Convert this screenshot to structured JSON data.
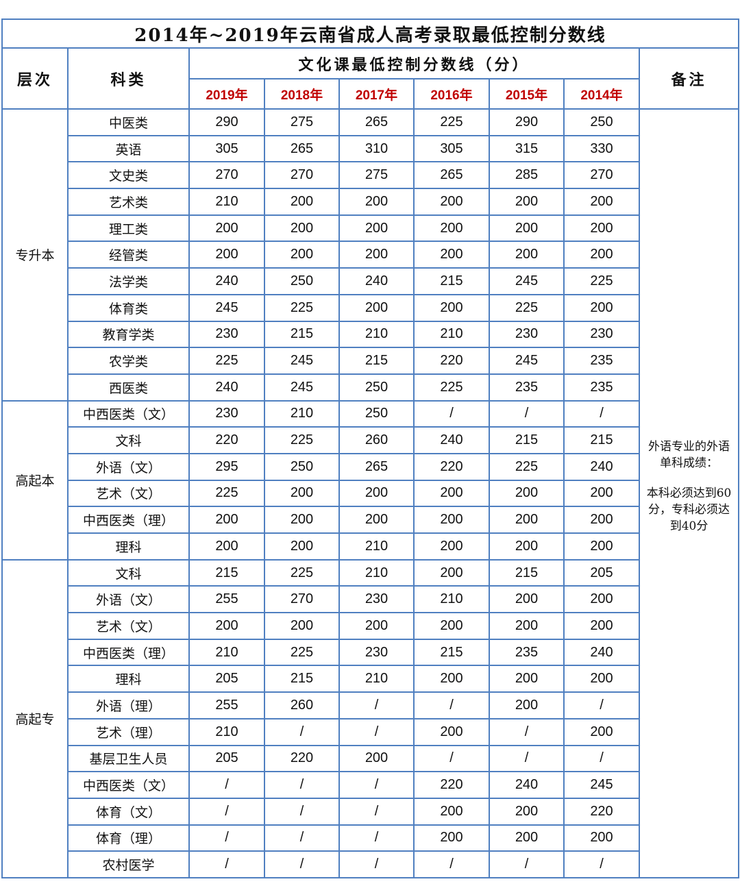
{
  "title": "2014年~2019年云南省成人高考录取最低控制分数线",
  "header": {
    "level": "层次",
    "category": "科类",
    "scores": "文化课最低控制分数线（分）",
    "years": [
      "2019年",
      "2018年",
      "2017年",
      "2016年",
      "2015年",
      "2014年"
    ],
    "note": "备注"
  },
  "groups": [
    {
      "level": "专升本",
      "rows": [
        {
          "category": "中医类",
          "scores": [
            290,
            275,
            265,
            225,
            290,
            250
          ]
        },
        {
          "category": "英语",
          "scores": [
            305,
            265,
            310,
            305,
            315,
            330
          ]
        },
        {
          "category": "文史类",
          "scores": [
            270,
            270,
            275,
            265,
            285,
            270
          ]
        },
        {
          "category": "艺术类",
          "scores": [
            210,
            200,
            200,
            200,
            200,
            200
          ]
        },
        {
          "category": "理工类",
          "scores": [
            200,
            200,
            200,
            200,
            200,
            200
          ]
        },
        {
          "category": "经管类",
          "scores": [
            200,
            200,
            200,
            200,
            200,
            200
          ]
        },
        {
          "category": "法学类",
          "scores": [
            240,
            250,
            240,
            215,
            245,
            225
          ]
        },
        {
          "category": "体育类",
          "scores": [
            245,
            225,
            200,
            200,
            225,
            200
          ]
        },
        {
          "category": "教育学类",
          "scores": [
            230,
            215,
            210,
            210,
            230,
            230
          ]
        },
        {
          "category": "农学类",
          "scores": [
            225,
            245,
            215,
            220,
            245,
            235
          ]
        },
        {
          "category": "西医类",
          "scores": [
            240,
            245,
            250,
            225,
            235,
            235
          ]
        }
      ]
    },
    {
      "level": "高起本",
      "rows": [
        {
          "category": "中西医类（文）",
          "scores": [
            230,
            210,
            250,
            "/",
            "/",
            "/"
          ]
        },
        {
          "category": "文科",
          "scores": [
            220,
            225,
            260,
            240,
            215,
            215
          ]
        },
        {
          "category": "外语（文）",
          "scores": [
            295,
            250,
            265,
            220,
            225,
            240
          ]
        },
        {
          "category": "艺术（文）",
          "scores": [
            225,
            200,
            200,
            200,
            200,
            200
          ]
        },
        {
          "category": "中西医类（理）",
          "scores": [
            200,
            200,
            200,
            200,
            200,
            200
          ]
        },
        {
          "category": "理科",
          "scores": [
            200,
            200,
            210,
            200,
            200,
            200
          ]
        }
      ]
    },
    {
      "level": "高起专",
      "rows": [
        {
          "category": "文科",
          "scores": [
            215,
            225,
            210,
            200,
            215,
            205
          ]
        },
        {
          "category": "外语（文）",
          "scores": [
            255,
            270,
            230,
            210,
            200,
            200
          ]
        },
        {
          "category": "艺术（文）",
          "scores": [
            200,
            200,
            200,
            200,
            200,
            200
          ]
        },
        {
          "category": "中西医类（理）",
          "scores": [
            210,
            225,
            230,
            215,
            235,
            240
          ]
        },
        {
          "category": "理科",
          "scores": [
            205,
            215,
            210,
            200,
            200,
            200
          ]
        },
        {
          "category": "外语（理）",
          "scores": [
            255,
            260,
            "/",
            "/",
            200,
            "/"
          ]
        },
        {
          "category": "艺术（理）",
          "scores": [
            210,
            "/",
            "/",
            200,
            "/",
            200
          ]
        },
        {
          "category": "基层卫生人员",
          "scores": [
            205,
            220,
            200,
            "/",
            "/",
            "/"
          ]
        },
        {
          "category": "中西医类（文）",
          "scores": [
            "/",
            "/",
            "/",
            220,
            240,
            245
          ]
        },
        {
          "category": "体育（文）",
          "scores": [
            "/",
            "/",
            "/",
            200,
            200,
            220
          ]
        },
        {
          "category": "体育（理）",
          "scores": [
            "/",
            "/",
            "/",
            200,
            200,
            200
          ]
        },
        {
          "category": "农村医学",
          "scores": [
            "/",
            "/",
            "/",
            "/",
            "/",
            "/"
          ]
        }
      ]
    }
  ],
  "note": [
    "外语专业的外语单科成绩：",
    "本科必须达到60分，专科必须达到40分"
  ]
}
